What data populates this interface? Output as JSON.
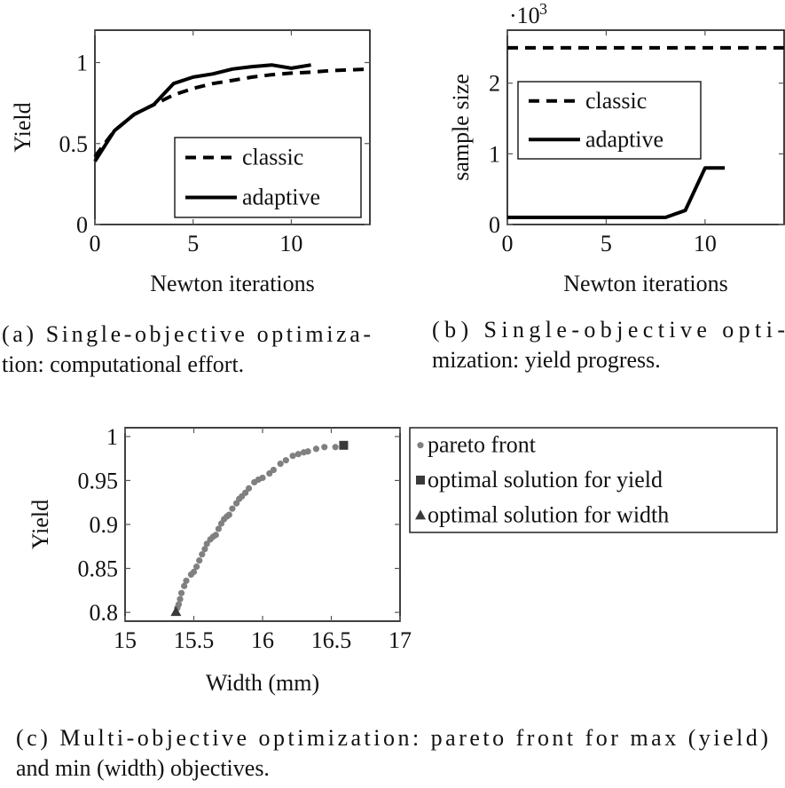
{
  "chart_data": [
    {
      "id": "a",
      "type": "line",
      "title": "",
      "xlabel": "Newton iterations",
      "ylabel": "Yield",
      "xlim": [
        0,
        14
      ],
      "ylim": [
        0,
        1.2
      ],
      "xticks": [
        0,
        5,
        10
      ],
      "xtick_labels": [
        "0",
        "5",
        "10"
      ],
      "yticks": [
        0,
        0.5,
        1
      ],
      "ytick_labels": [
        "0",
        "0.5",
        "1"
      ],
      "grid": false,
      "legend_position": "bottom-right",
      "series": [
        {
          "name": "classic",
          "style": "dashed",
          "x": [
            0,
            1,
            2,
            3,
            4,
            5,
            6,
            7,
            8,
            9,
            10,
            11,
            12,
            13,
            14
          ],
          "y": [
            0.42,
            0.58,
            0.68,
            0.74,
            0.8,
            0.84,
            0.87,
            0.89,
            0.91,
            0.925,
            0.935,
            0.94,
            0.95,
            0.955,
            0.96
          ]
        },
        {
          "name": "adaptive",
          "style": "solid",
          "x": [
            0,
            1,
            2,
            3,
            4,
            5,
            6,
            7,
            8,
            9,
            10,
            11
          ],
          "y": [
            0.39,
            0.58,
            0.68,
            0.74,
            0.87,
            0.91,
            0.93,
            0.96,
            0.975,
            0.985,
            0.965,
            0.985
          ]
        }
      ],
      "caption": [
        "(a) Single-objective optimiza-",
        "tion: computational effort."
      ]
    },
    {
      "id": "b",
      "type": "line",
      "title": "",
      "xlabel": "Newton iterations",
      "ylabel": "sample size",
      "scale_label": "·10",
      "scale_exponent": "3",
      "xlim": [
        0,
        14
      ],
      "ylim": [
        0,
        2750
      ],
      "xticks": [
        0,
        5,
        10
      ],
      "xtick_labels": [
        "0",
        "5",
        "10"
      ],
      "yticks": [
        0,
        1000,
        2000
      ],
      "ytick_labels": [
        "0",
        "1",
        "2"
      ],
      "grid": false,
      "legend_position": "top-left",
      "series": [
        {
          "name": "classic",
          "style": "dashed",
          "x": [
            0,
            14
          ],
          "y": [
            2500,
            2500
          ]
        },
        {
          "name": "adaptive",
          "style": "solid",
          "x": [
            0,
            1,
            2,
            3,
            4,
            5,
            6,
            7,
            8,
            9,
            10,
            11
          ],
          "y": [
            100,
            100,
            100,
            100,
            100,
            100,
            100,
            100,
            100,
            200,
            800,
            800
          ]
        }
      ],
      "caption": [
        "(b) Single-objective opti-",
        "mization: yield progress."
      ]
    },
    {
      "id": "c",
      "type": "scatter",
      "title": "",
      "xlabel": "Width (mm)",
      "ylabel": "Yield",
      "xlim": [
        15,
        17
      ],
      "ylim": [
        0.79,
        1.01
      ],
      "xticks": [
        15,
        15.5,
        16,
        16.5,
        17
      ],
      "xtick_labels": [
        "15",
        "15.5",
        "16",
        "16.5",
        "17"
      ],
      "yticks": [
        0.8,
        0.85,
        0.9,
        0.95,
        1
      ],
      "ytick_labels": [
        "0.8",
        "0.85",
        "0.9",
        "0.95",
        "1"
      ],
      "grid": false,
      "legend_position": "outside-right",
      "series": [
        {
          "name": "pareto front",
          "marker": "circle",
          "color": "#808080",
          "x": [
            15.38,
            15.39,
            15.4,
            15.41,
            15.43,
            15.445,
            15.48,
            15.5,
            15.52,
            15.54,
            15.56,
            15.58,
            15.595,
            15.62,
            15.64,
            15.66,
            15.68,
            15.7,
            15.72,
            15.74,
            15.757,
            15.78,
            15.81,
            15.83,
            15.85,
            15.875,
            15.9,
            15.94,
            15.97,
            16.0,
            16.05,
            16.08,
            16.13,
            16.17,
            16.22,
            16.26,
            16.3,
            16.33,
            16.39,
            16.45,
            16.53
          ],
          "y": [
            0.805,
            0.809,
            0.815,
            0.822,
            0.83,
            0.836,
            0.843,
            0.846,
            0.852,
            0.859,
            0.866,
            0.872,
            0.878,
            0.883,
            0.886,
            0.888,
            0.895,
            0.901,
            0.906,
            0.909,
            0.911,
            0.918,
            0.924,
            0.929,
            0.932,
            0.936,
            0.941,
            0.948,
            0.951,
            0.953,
            0.958,
            0.962,
            0.969,
            0.973,
            0.978,
            0.98,
            0.982,
            0.983,
            0.986,
            0.988,
            0.988
          ]
        },
        {
          "name": "optimal solution for yield",
          "marker": "square",
          "color": "#3a3a3a",
          "x": [
            16.59
          ],
          "y": [
            0.99
          ]
        },
        {
          "name": "optimal solution for width",
          "marker": "triangle",
          "color": "#3a3a3a",
          "x": [
            15.37
          ],
          "y": [
            0.801
          ]
        }
      ],
      "caption": [
        "(c) Multi-objective optimization: pareto front for max (yield)",
        "and min (width) objectives."
      ]
    }
  ]
}
